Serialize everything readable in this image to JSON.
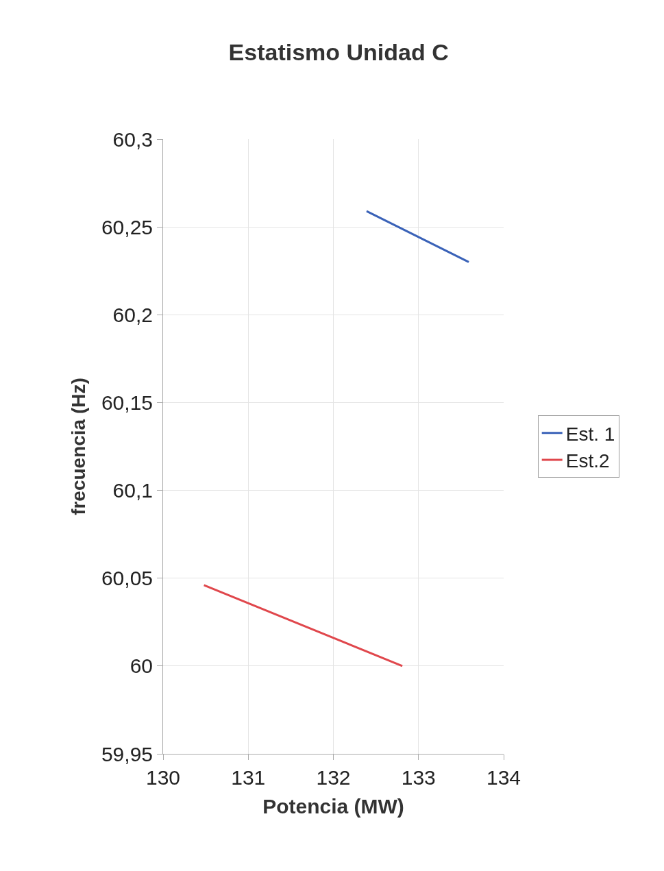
{
  "chart_data": {
    "type": "line",
    "title": "Estatismo Unidad C",
    "xlabel": "Potencia (MW)",
    "ylabel": "frecuencia (Hz)",
    "series": [
      {
        "name": "Est. 1",
        "color": "#3a62b8",
        "x": [
          132.39,
          133.59
        ],
        "values": [
          60.259,
          60.23
        ]
      },
      {
        "name": "Est.2",
        "color": "#e0474c",
        "x": [
          130.48,
          132.81
        ],
        "values": [
          60.046,
          60.0
        ]
      }
    ],
    "xlim": [
      130,
      134
    ],
    "xticks": [
      130,
      131,
      132,
      133,
      134
    ],
    "ylim": [
      59.95,
      60.3
    ],
    "yticks": [
      {
        "value": 59.95,
        "label": "59,95"
      },
      60,
      {
        "value": 60.05,
        "label": "60,05"
      },
      {
        "value": 60.1,
        "label": "60,1"
      },
      {
        "value": 60.15,
        "label": "60,15"
      },
      {
        "value": 60.2,
        "label": "60,2"
      },
      {
        "value": 60.25,
        "label": "60,25"
      },
      {
        "value": 60.3,
        "label": "60,3"
      }
    ],
    "grid": true,
    "legend": "right",
    "marker": "none",
    "line_style": "solid"
  }
}
